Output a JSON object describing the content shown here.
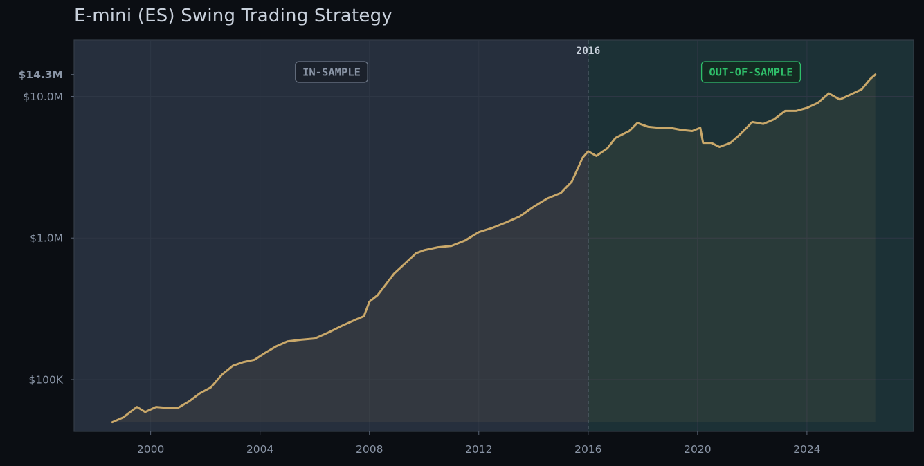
{
  "chart_data": {
    "type": "line",
    "title": "E-mini (ES) Swing Trading Strategy",
    "xlabel": "",
    "ylabel": "",
    "y_scale": "log",
    "xlim": [
      1997.2,
      2027.9
    ],
    "ylim": [
      43000,
      25000000
    ],
    "x_ticks": [
      2000,
      2004,
      2008,
      2012,
      2016,
      2020,
      2024
    ],
    "y_ticks": [
      {
        "value": 100000,
        "label": "$100K"
      },
      {
        "value": 1000000,
        "label": "$1.0M"
      },
      {
        "value": 10000000,
        "label": "$10.0M"
      },
      {
        "value": 14300000,
        "label": "$14.3M",
        "emphasis": true
      }
    ],
    "grid": true,
    "split": {
      "x": 2016,
      "label": "2016"
    },
    "regions": [
      {
        "name": "in_sample",
        "label": "IN-SAMPLE",
        "from": 1997.2,
        "to": 2016,
        "color": "#262f3d",
        "text_color": "#8a95a6"
      },
      {
        "name": "out_of_sample",
        "label": "OUT-OF-SAMPLE",
        "from": 2016,
        "to": 2027.9,
        "color": "#1c3136",
        "text_color": "#2fbf6a"
      }
    ],
    "line_color": "#c9a86a",
    "series": [
      {
        "name": "",
        "points": [
          [
            1998.6,
            50000
          ],
          [
            1999.0,
            54000
          ],
          [
            1999.3,
            60000
          ],
          [
            1999.5,
            64000
          ],
          [
            1999.8,
            59000
          ],
          [
            2000.2,
            64000
          ],
          [
            2000.6,
            63000
          ],
          [
            2001.0,
            63000
          ],
          [
            2001.4,
            70000
          ],
          [
            2001.8,
            80000
          ],
          [
            2002.2,
            88000
          ],
          [
            2002.6,
            108000
          ],
          [
            2003.0,
            125000
          ],
          [
            2003.4,
            133000
          ],
          [
            2003.8,
            138000
          ],
          [
            2004.2,
            155000
          ],
          [
            2004.6,
            172000
          ],
          [
            2005.0,
            186000
          ],
          [
            2005.5,
            191000
          ],
          [
            2006.0,
            195000
          ],
          [
            2006.5,
            215000
          ],
          [
            2007.0,
            240000
          ],
          [
            2007.5,
            265000
          ],
          [
            2007.8,
            280000
          ],
          [
            2008.0,
            355000
          ],
          [
            2008.3,
            395000
          ],
          [
            2008.6,
            470000
          ],
          [
            2008.9,
            560000
          ],
          [
            2009.3,
            660000
          ],
          [
            2009.7,
            780000
          ],
          [
            2010.0,
            820000
          ],
          [
            2010.5,
            860000
          ],
          [
            2011.0,
            880000
          ],
          [
            2011.5,
            960000
          ],
          [
            2012.0,
            1100000
          ],
          [
            2012.5,
            1180000
          ],
          [
            2013.0,
            1290000
          ],
          [
            2013.5,
            1420000
          ],
          [
            2014.0,
            1660000
          ],
          [
            2014.5,
            1900000
          ],
          [
            2015.0,
            2080000
          ],
          [
            2015.4,
            2500000
          ],
          [
            2015.8,
            3700000
          ],
          [
            2016.0,
            4100000
          ],
          [
            2016.3,
            3800000
          ],
          [
            2016.7,
            4300000
          ],
          [
            2017.0,
            5100000
          ],
          [
            2017.5,
            5700000
          ],
          [
            2017.8,
            6500000
          ],
          [
            2018.2,
            6100000
          ],
          [
            2018.6,
            6000000
          ],
          [
            2019.0,
            6000000
          ],
          [
            2019.4,
            5800000
          ],
          [
            2019.8,
            5700000
          ],
          [
            2020.1,
            6000000
          ],
          [
            2020.2,
            4700000
          ],
          [
            2020.5,
            4700000
          ],
          [
            2020.8,
            4400000
          ],
          [
            2021.2,
            4700000
          ],
          [
            2021.6,
            5500000
          ],
          [
            2022.0,
            6600000
          ],
          [
            2022.4,
            6400000
          ],
          [
            2022.8,
            6900000
          ],
          [
            2023.2,
            7900000
          ],
          [
            2023.6,
            7900000
          ],
          [
            2024.0,
            8300000
          ],
          [
            2024.4,
            9000000
          ],
          [
            2024.8,
            10500000
          ],
          [
            2025.2,
            9500000
          ],
          [
            2025.6,
            10300000
          ],
          [
            2026.0,
            11200000
          ],
          [
            2026.3,
            13200000
          ],
          [
            2026.5,
            14300000
          ]
        ]
      }
    ]
  }
}
